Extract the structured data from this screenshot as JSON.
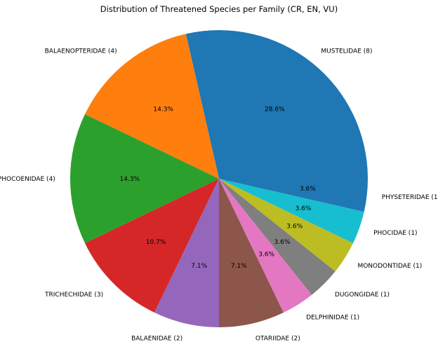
{
  "chart_data": {
    "type": "pie",
    "title": "Distribution of Threatened Species per Family (CR, EN, VU)",
    "slices": [
      {
        "label": "MUSTELIDAE (8)",
        "value": 8,
        "percent": "28.6%",
        "color": "#1f77b4"
      },
      {
        "label": "BALAENOPTERIDAE (4)",
        "value": 4,
        "percent": "14.3%",
        "color": "#ff7f0e"
      },
      {
        "label": "PHOCOENIDAE (4)",
        "value": 4,
        "percent": "14.3%",
        "color": "#2ca02c"
      },
      {
        "label": "TRICHECHIDAE (3)",
        "value": 3,
        "percent": "10.7%",
        "color": "#d62728"
      },
      {
        "label": "BALAENIDAE (2)",
        "value": 2,
        "percent": "7.1%",
        "color": "#9467bd"
      },
      {
        "label": "OTARIIDAE (2)",
        "value": 2,
        "percent": "7.1%",
        "color": "#8c564b"
      },
      {
        "label": "DELPHINIDAE (1)",
        "value": 1,
        "percent": "3.6%",
        "color": "#e377c2"
      },
      {
        "label": "DUGONGIDAE (1)",
        "value": 1,
        "percent": "3.6%",
        "color": "#7f7f7f"
      },
      {
        "label": "MONODONTIDAE (1)",
        "value": 1,
        "percent": "3.6%",
        "color": "#bcbd22"
      },
      {
        "label": "PHOCIDAE (1)",
        "value": 1,
        "percent": "3.6%",
        "color": "#17becf"
      },
      {
        "label": "PHYSETERIDAE (1)",
        "value": 1,
        "percent": "3.6%",
        "color": "#1f77b4"
      }
    ]
  }
}
